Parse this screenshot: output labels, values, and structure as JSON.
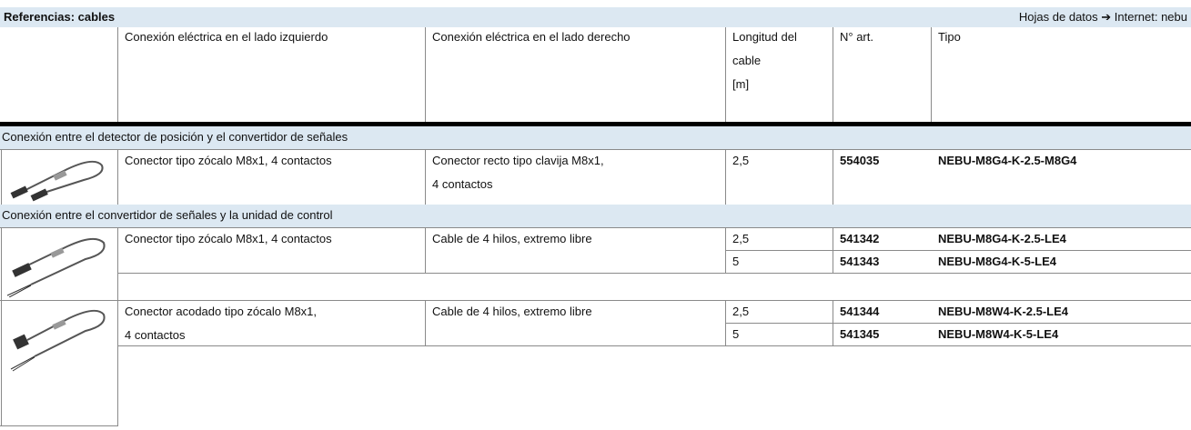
{
  "header": {
    "title": "Referencias: cables",
    "note": "Hojas de datos ➔ Internet: nebu"
  },
  "table": {
    "columns": [
      [
        "Conexión eléctrica en el lado izquierdo"
      ],
      [
        "Conexión eléctrica en el lado derecho"
      ],
      [
        "Longitud del",
        "cable",
        "[m]"
      ],
      [
        "N° art."
      ],
      [
        "Tipo"
      ]
    ],
    "sections": [
      {
        "title": "Conexión entre el detector de posición y el convertidor de señales",
        "rows": [
          {
            "left": [
              "Conector tipo zócalo M8x1, 4 contactos"
            ],
            "right": [
              "Conector recto tipo clavija M8x1,",
              "4 contactos"
            ],
            "items": [
              {
                "length": "2,5",
                "article": "554035",
                "type": "NEBU-M8G4-K-2.5-M8G4"
              }
            ]
          }
        ]
      },
      {
        "title": "Conexión entre el convertidor de señales y la unidad de control",
        "rows": [
          {
            "left": [
              "Conector tipo zócalo M8x1, 4 contactos"
            ],
            "right": [
              "Cable de 4 hilos, extremo libre"
            ],
            "items": [
              {
                "length": "2,5",
                "article": "541342",
                "type": "NEBU-M8G4-K-2.5-LE4"
              },
              {
                "length": "5",
                "article": "541343",
                "type": "NEBU-M8G4-K-5-LE4"
              }
            ]
          },
          {
            "left": [
              "Conector acodado tipo zócalo M8x1,",
              "4 contactos"
            ],
            "right": [
              "Cable de 4 hilos, extremo libre"
            ],
            "items": [
              {
                "length": "2,5",
                "article": "541344",
                "type": "NEBU-M8W4-K-2.5-LE4"
              },
              {
                "length": "5",
                "article": "541345",
                "type": "NEBU-M8W4-K-5-LE4"
              }
            ]
          }
        ]
      }
    ]
  }
}
